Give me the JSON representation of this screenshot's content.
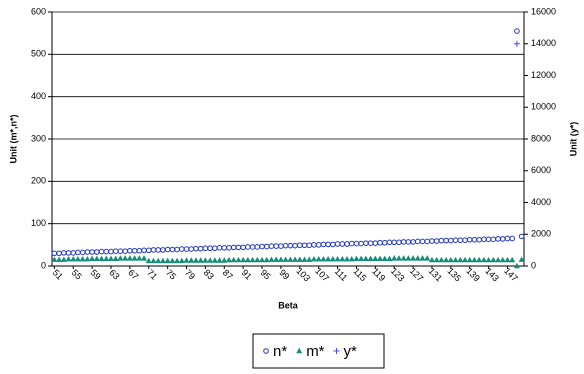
{
  "chart_data": {
    "type": "scatter",
    "x_label": "Beta",
    "y_label": "Unit (m*,n*)",
    "y2_label": "Unit (y*)",
    "x": [
      51,
      52,
      53,
      54,
      55,
      56,
      57,
      58,
      59,
      60,
      61,
      62,
      63,
      64,
      65,
      66,
      67,
      68,
      69,
      70,
      71,
      72,
      73,
      74,
      75,
      76,
      77,
      78,
      79,
      80,
      81,
      82,
      83,
      84,
      85,
      86,
      87,
      88,
      89,
      90,
      91,
      92,
      93,
      94,
      95,
      96,
      97,
      98,
      99,
      100,
      101,
      102,
      103,
      104,
      105,
      106,
      107,
      108,
      109,
      110,
      111,
      112,
      113,
      114,
      115,
      116,
      117,
      118,
      119,
      120,
      121,
      122,
      123,
      124,
      125,
      126,
      127,
      128,
      129,
      130,
      131,
      132,
      133,
      134,
      135,
      136,
      137,
      138,
      139,
      140,
      141,
      142,
      143,
      144,
      145,
      146,
      147,
      148,
      149,
      150
    ],
    "xlim": [
      50.5,
      150.5
    ],
    "xticks": [
      51,
      55,
      59,
      63,
      67,
      71,
      75,
      79,
      83,
      87,
      91,
      95,
      99,
      103,
      107,
      111,
      115,
      119,
      123,
      127,
      131,
      135,
      139,
      143,
      147
    ],
    "ylim": [
      0,
      600
    ],
    "yticks": [
      0,
      100,
      200,
      300,
      400,
      500,
      600
    ],
    "y2lim": [
      0,
      16000
    ],
    "y2ticks": [
      0,
      2000,
      4000,
      6000,
      8000,
      10000,
      12000,
      14000,
      16000
    ],
    "grid": true,
    "series": [
      {
        "name": "n*",
        "color": "#2036c0",
        "marker": "circle",
        "values": [
          30,
          30,
          31,
          31,
          31,
          32,
          32,
          33,
          33,
          33,
          34,
          34,
          34,
          35,
          35,
          35,
          36,
          36,
          36,
          37,
          37,
          38,
          38,
          38,
          39,
          39,
          39,
          40,
          40,
          40,
          41,
          41,
          42,
          42,
          42,
          43,
          43,
          43,
          44,
          44,
          44,
          45,
          45,
          45,
          46,
          46,
          47,
          47,
          47,
          48,
          48,
          48,
          49,
          49,
          49,
          50,
          50,
          51,
          51,
          51,
          52,
          52,
          52,
          53,
          53,
          53,
          54,
          54,
          54,
          55,
          55,
          56,
          56,
          56,
          57,
          57,
          57,
          58,
          58,
          58,
          59,
          59,
          60,
          60,
          60,
          61,
          61,
          61,
          62,
          62,
          62,
          63,
          63,
          63,
          64,
          64,
          65,
          65,
          555,
          70
        ]
      },
      {
        "name": "m*",
        "color": "#138c7a",
        "marker": "triangle",
        "values": [
          15,
          15,
          15,
          16,
          16,
          16,
          16,
          16,
          17,
          17,
          17,
          17,
          17,
          17,
          18,
          18,
          18,
          18,
          18,
          18,
          12,
          12,
          12,
          12,
          12,
          12,
          12,
          12,
          13,
          13,
          13,
          13,
          13,
          13,
          13,
          13,
          13,
          14,
          14,
          14,
          14,
          14,
          14,
          14,
          14,
          14,
          15,
          15,
          15,
          15,
          15,
          15,
          15,
          15,
          15,
          16,
          16,
          16,
          16,
          16,
          16,
          16,
          16,
          16,
          17,
          17,
          17,
          17,
          17,
          17,
          17,
          17,
          18,
          18,
          18,
          18,
          18,
          18,
          18,
          18,
          14,
          14,
          14,
          14,
          14,
          14,
          14,
          14,
          14,
          14,
          14,
          14,
          14,
          14,
          14,
          14,
          14,
          14,
          0,
          15
        ]
      },
      {
        "name": "y*",
        "color": "#3a4fd8",
        "marker": "plus",
        "axis": "y2",
        "values": [
          null,
          null,
          null,
          null,
          null,
          null,
          null,
          null,
          null,
          null,
          null,
          null,
          null,
          null,
          null,
          null,
          null,
          null,
          null,
          null,
          null,
          null,
          null,
          null,
          null,
          null,
          null,
          null,
          null,
          null,
          null,
          null,
          null,
          null,
          null,
          null,
          null,
          null,
          null,
          null,
          null,
          null,
          null,
          null,
          null,
          null,
          null,
          null,
          null,
          null,
          null,
          null,
          null,
          null,
          null,
          null,
          null,
          null,
          null,
          null,
          null,
          null,
          null,
          null,
          null,
          null,
          null,
          null,
          null,
          null,
          null,
          null,
          null,
          null,
          null,
          null,
          null,
          null,
          null,
          null,
          null,
          null,
          null,
          null,
          null,
          null,
          null,
          null,
          null,
          null,
          null,
          null,
          null,
          null,
          null,
          null,
          null,
          null,
          14000,
          null
        ]
      }
    ]
  }
}
